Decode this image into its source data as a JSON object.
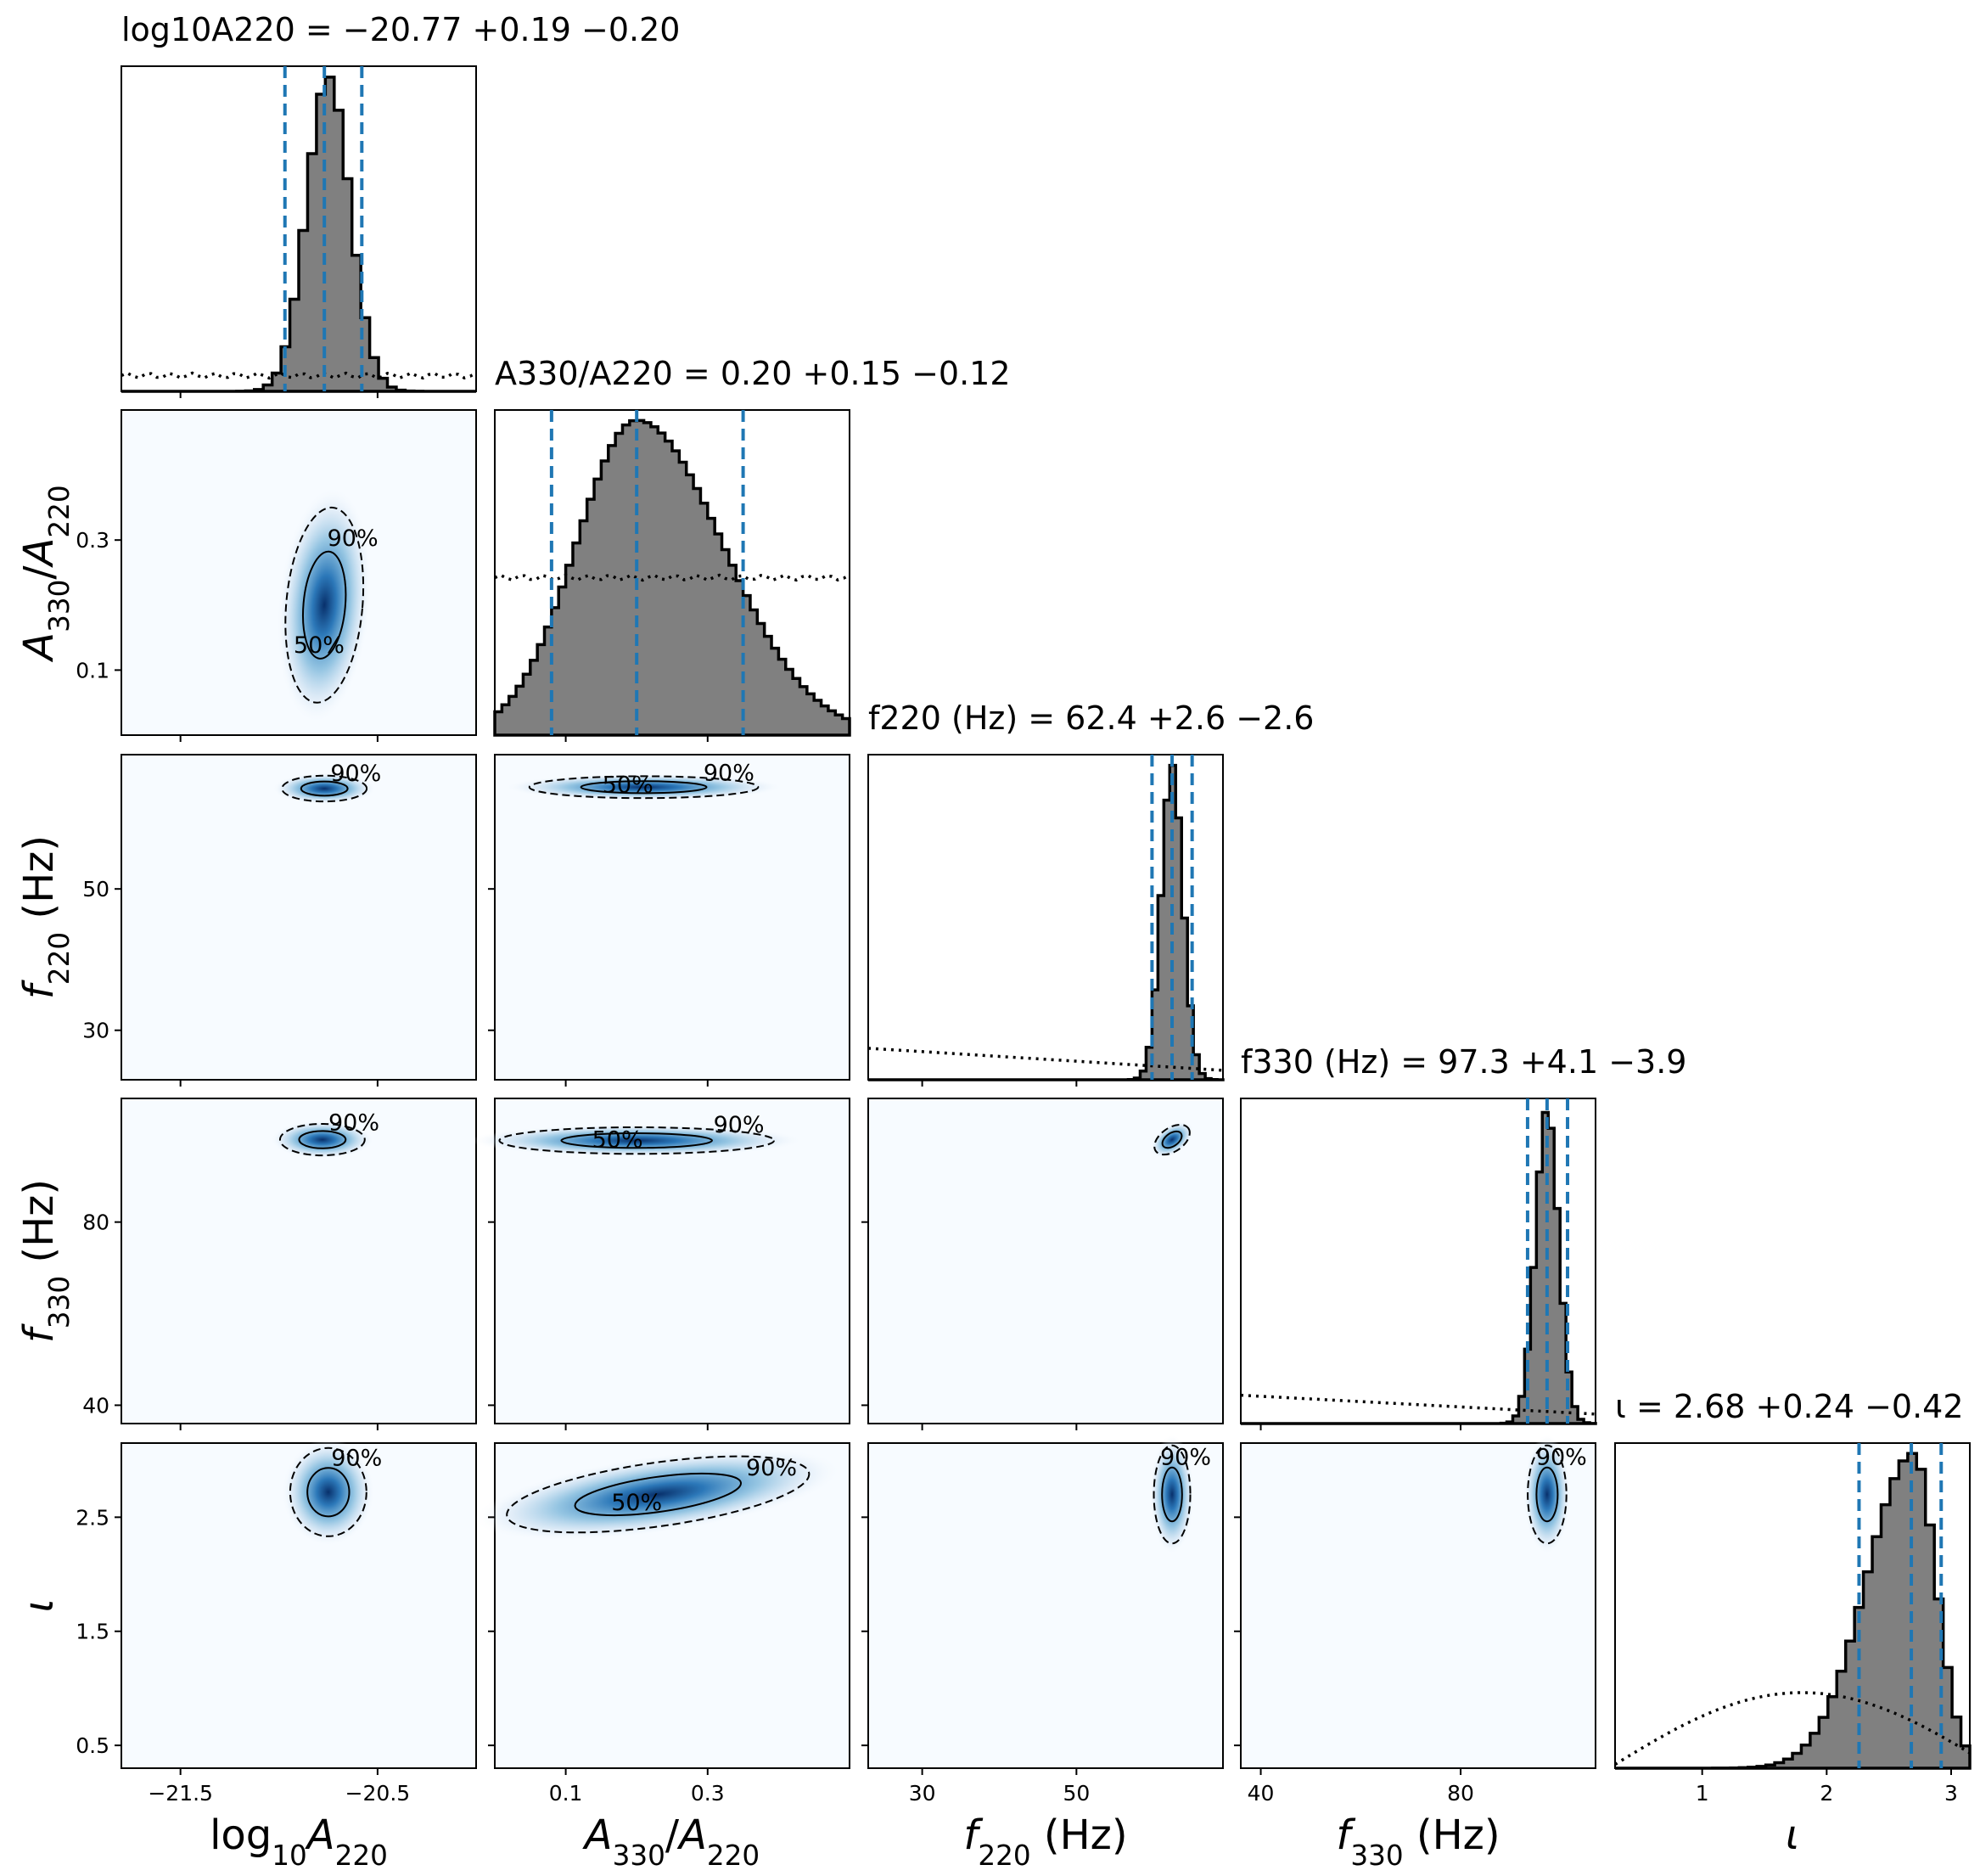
{
  "chart_data": {
    "type": "corner",
    "params": [
      {
        "key": "logA220",
        "label": "log10A220",
        "xlim": [
          -21.8,
          -20.0
        ],
        "ticks": [
          {
            "v": -21.5,
            "t": "−21.5"
          },
          {
            "v": -20.5,
            "t": "−20.5"
          }
        ],
        "title": "log10A220 = −20.77 +0.19 −0.20",
        "summary": {
          "median": -20.77,
          "plus": 0.19,
          "minus": 0.2
        },
        "hist": {
          "edges": [
            -21.8,
            -20.0
          ],
          "n": 40,
          "peak_center": -20.75,
          "peak_sd": 0.11
        },
        "prior": {
          "type": "flat",
          "level": 0.05
        }
      },
      {
        "key": "ratio",
        "label": "A330/A220",
        "xlim": [
          0.0,
          0.5
        ],
        "ticks": [
          {
            "v": 0.1,
            "t": "0.1"
          },
          {
            "v": 0.3,
            "t": "0.3"
          }
        ],
        "title": "A330/A220 = 0.20 +0.15 −0.12",
        "summary": {
          "median": 0.2,
          "plus": 0.15,
          "minus": 0.12
        },
        "hist": {
          "edges": [
            0.0,
            0.5
          ],
          "n": 50,
          "peak_center": 0.2,
          "peak_sd": 0.09
        },
        "prior": {
          "type": "flat",
          "level": 0.5
        }
      },
      {
        "key": "f220",
        "label": "f220 (Hz)",
        "xlim": [
          23,
          69
        ],
        "ticks": [
          {
            "v": 30,
            "t": "30"
          },
          {
            "v": 50,
            "t": "50"
          }
        ],
        "title": "f220 (Hz) = 62.4 +2.6 −2.6",
        "summary": {
          "median": 62.4,
          "plus": 2.6,
          "minus": 2.6
        },
        "hist": {
          "edges": [
            23,
            69
          ],
          "n": 60,
          "peak_center": 62.4,
          "peak_sd": 1.4
        },
        "prior": {
          "type": "decreasing",
          "start": 0.1,
          "end": 0.03
        }
      },
      {
        "key": "f330",
        "label": "f330 (Hz)",
        "xlim": [
          36,
          107
        ],
        "ticks": [
          {
            "v": 40,
            "t": "40"
          },
          {
            "v": 80,
            "t": "80"
          }
        ],
        "title": "f330 (Hz) = 97.3 +4.1 −3.9",
        "summary": {
          "median": 97.3,
          "plus": 4.1,
          "minus": 3.9
        },
        "hist": {
          "edges": [
            36,
            107
          ],
          "n": 60,
          "peak_center": 97.3,
          "peak_sd": 2.3
        },
        "prior": {
          "type": "decreasing",
          "start": 0.09,
          "end": 0.03
        }
      },
      {
        "key": "iota",
        "label": "ι",
        "xlim": [
          0.3,
          3.15
        ],
        "ticks": [
          {
            "v": 1,
            "t": "1"
          },
          {
            "v": 2,
            "t": "2"
          },
          {
            "v": 3,
            "t": "3"
          }
        ],
        "title": "ι = 2.68 +0.24 −0.42",
        "summary": {
          "median": 2.68,
          "plus": 0.24,
          "minus": 0.42
        },
        "hist": {
          "edges": [
            0.3,
            3.15
          ],
          "n": 40,
          "peak_center": 2.7,
          "peak_sd": 0.2
        },
        "prior": {
          "type": "sine",
          "peak": 0.24
        }
      }
    ],
    "y_ranges": {
      "ratio": [
        0.0,
        0.5
      ],
      "f220": [
        23,
        69
      ],
      "f330": [
        36,
        107
      ],
      "iota": [
        0.3,
        3.15
      ]
    },
    "y_ticks": {
      "ratio": [
        {
          "v": 0.1,
          "t": "0.1"
        },
        {
          "v": 0.3,
          "t": "0.3"
        }
      ],
      "f220": [
        {
          "v": 30,
          "t": "30"
        },
        {
          "v": 50,
          "t": "50"
        }
      ],
      "f330": [
        {
          "v": 40,
          "t": "40"
        },
        {
          "v": 80,
          "t": "80"
        }
      ],
      "iota": [
        {
          "v": 0.5,
          "t": "0.5"
        },
        {
          "v": 1.5,
          "t": "1.5"
        },
        {
          "v": 2.5,
          "t": "2.5"
        }
      ]
    },
    "contours": [
      {
        "row": 1,
        "col": 0,
        "cx": -20.77,
        "cy": 0.2,
        "sx": 0.09,
        "sy": 0.07,
        "rot": 5,
        "l50": "50%",
        "l90": "90%"
      },
      {
        "row": 2,
        "col": 0,
        "cx": -20.77,
        "cy": 64.2,
        "sx": 0.1,
        "sy": 0.85,
        "rot": 0,
        "l50": "",
        "l90": "90%"
      },
      {
        "row": 2,
        "col": 1,
        "cx": 0.21,
        "cy": 64.4,
        "sx": 0.075,
        "sy": 0.72,
        "rot": 0,
        "l50": "50%",
        "l90": "90%"
      },
      {
        "row": 3,
        "col": 0,
        "cx": -20.78,
        "cy": 98.0,
        "sx": 0.1,
        "sy": 1.6,
        "rot": 0,
        "l50": "",
        "l90": "90%"
      },
      {
        "row": 3,
        "col": 1,
        "cx": 0.2,
        "cy": 97.8,
        "sx": 0.09,
        "sy": 1.35,
        "rot": 0,
        "l50": "50%",
        "l90": "90%"
      },
      {
        "row": 3,
        "col": 2,
        "cx": 62.4,
        "cy": 98.0,
        "sx": 1.2,
        "sy": 1.2,
        "rot": -35,
        "l50": "",
        "l90": ""
      },
      {
        "row": 4,
        "col": 0,
        "cx": -20.75,
        "cy": 2.72,
        "sx": 0.09,
        "sy": 0.18,
        "rot": 0,
        "l50": "",
        "l90": "90%"
      },
      {
        "row": 4,
        "col": 1,
        "cx": 0.23,
        "cy": 2.7,
        "sx": 0.1,
        "sy": 0.13,
        "rot": -8,
        "l50": "50%",
        "l90": "90%"
      },
      {
        "row": 4,
        "col": 2,
        "cx": 62.4,
        "cy": 2.7,
        "sx": 1.1,
        "sy": 0.2,
        "rot": 0,
        "l50": "",
        "l90": "90%"
      },
      {
        "row": 4,
        "col": 3,
        "cx": 97.3,
        "cy": 2.7,
        "sx": 1.8,
        "sy": 0.2,
        "rot": 0,
        "l50": "",
        "l90": "90%"
      }
    ]
  }
}
